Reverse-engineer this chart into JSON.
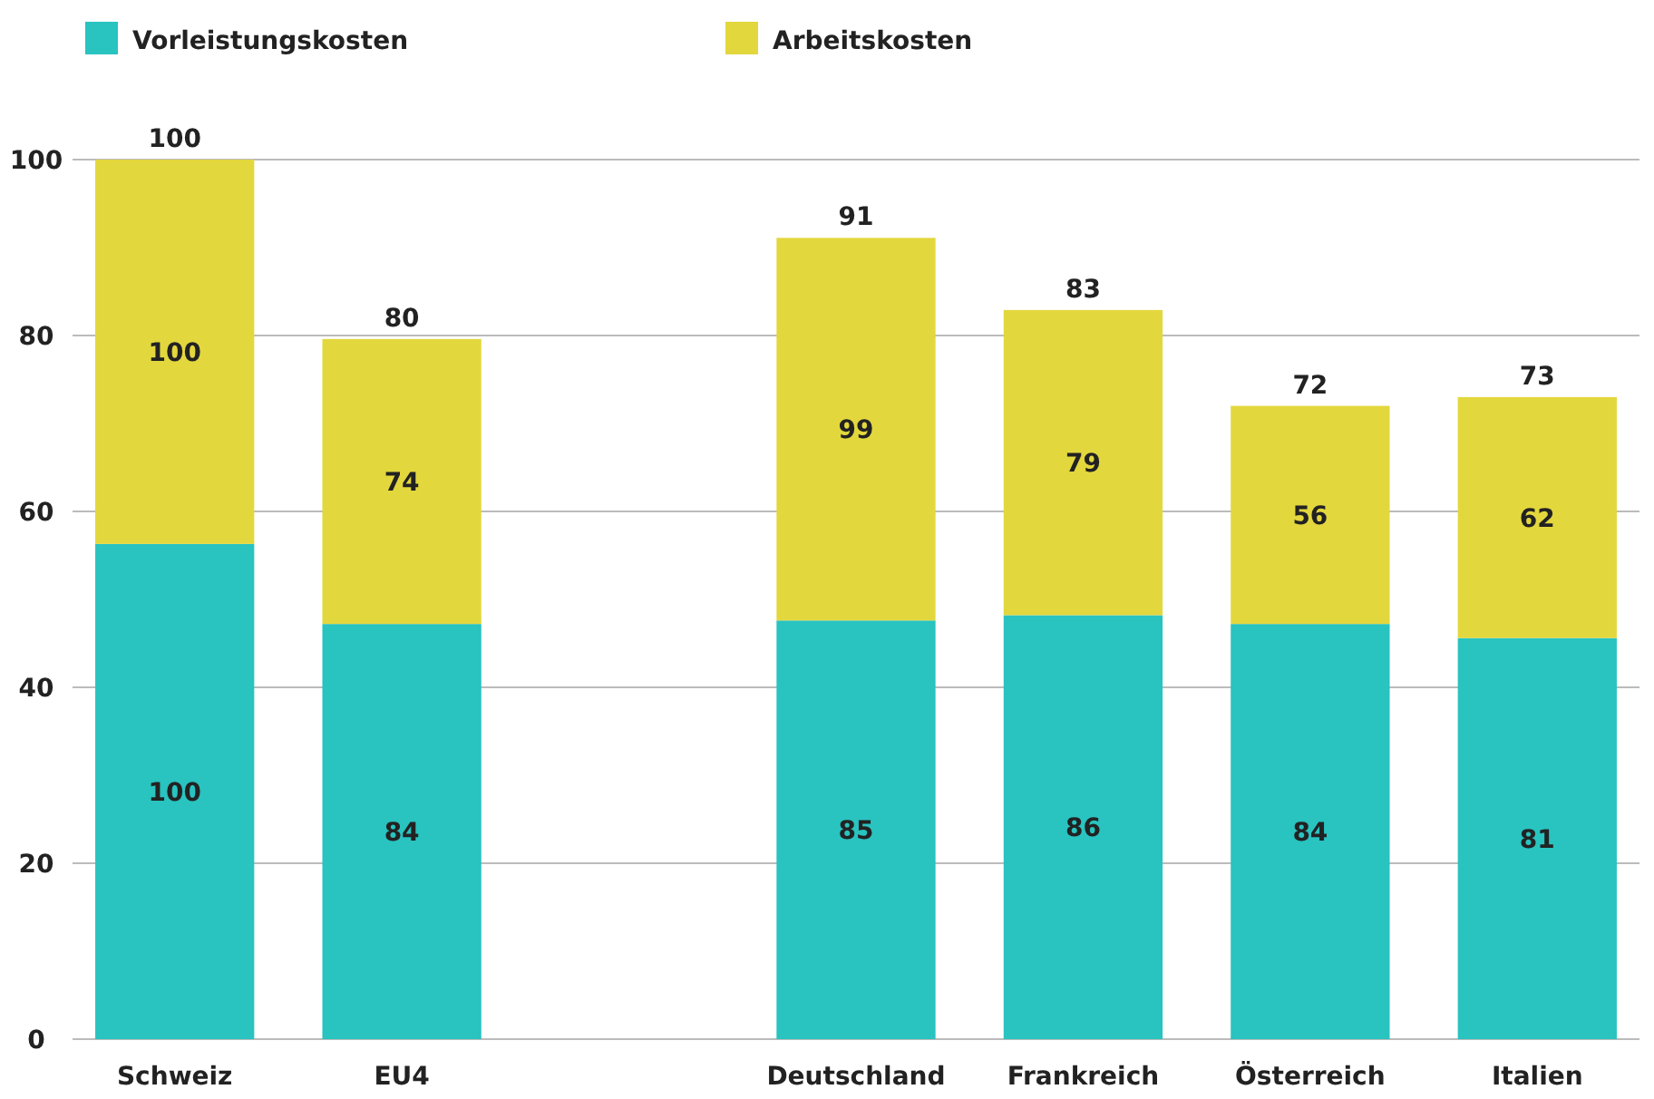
{
  "chart_data": {
    "type": "bar",
    "stacked": true,
    "categories": [
      "Schweiz",
      "EU4",
      null,
      "Deutschland",
      "Frankreich",
      "Österreich",
      "Italien"
    ],
    "series": [
      {
        "name": "Vorleistungskosten",
        "color": "#29c3c0",
        "values": [
          56.3,
          47.2,
          null,
          47.6,
          48.2,
          47.2,
          45.6
        ]
      },
      {
        "name": "Arbeitskosten",
        "color": "#e3d73e",
        "values": [
          43.7,
          32.4,
          null,
          43.5,
          34.7,
          24.8,
          27.4
        ]
      }
    ],
    "annotations": [
      "100",
      "84",
      "85",
      "86",
      "84",
      "81",
      "100",
      "74",
      "99",
      "79",
      "56",
      "62"
    ],
    "totals": [
      "100",
      "80",
      null,
      "91",
      "83",
      "72",
      "73"
    ],
    "ylim": [
      0,
      100
    ],
    "yticks": [
      0,
      20,
      40,
      60,
      80,
      100
    ],
    "grid": "y",
    "legend": "top left"
  }
}
